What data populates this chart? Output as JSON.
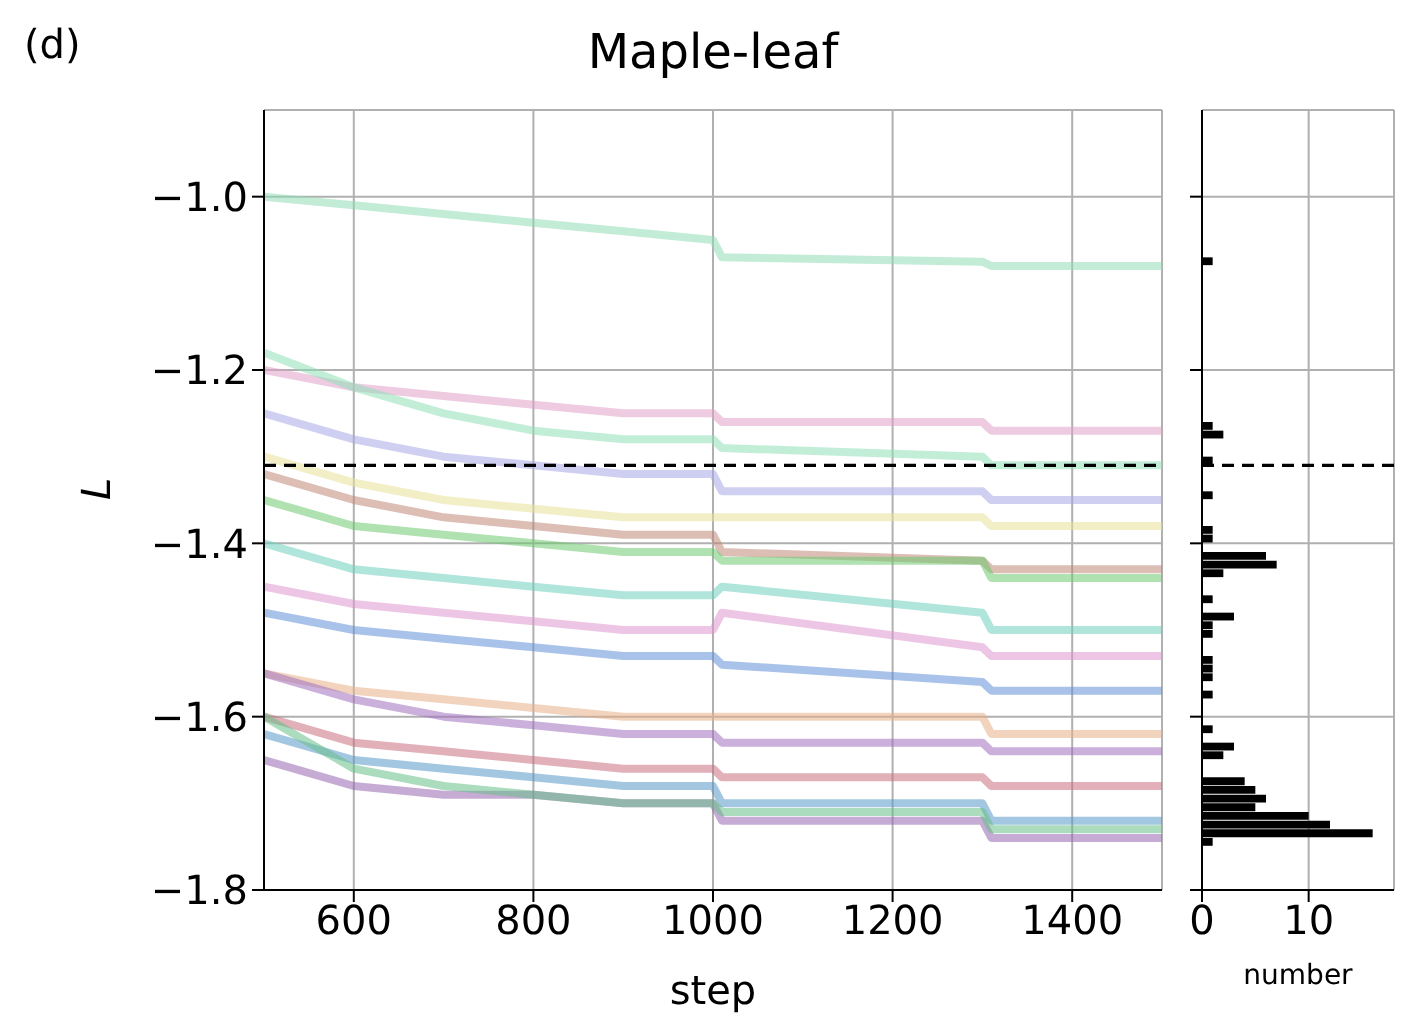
{
  "chart_data": [
    {
      "type": "line",
      "title": "Maple-leaf",
      "xlabel": "step",
      "ylabel": "L",
      "annotations": [
        "(d)"
      ],
      "x": [
        500,
        600,
        700,
        800,
        900,
        1000,
        1010,
        1300,
        1310,
        1500
      ],
      "series": [
        {
          "color": "#8fdcb4",
          "values": [
            -1.0,
            -1.01,
            -1.02,
            -1.03,
            -1.04,
            -1.05,
            -1.07,
            -1.075,
            -1.08,
            -1.08
          ]
        },
        {
          "color": "#e0a0c8",
          "values": [
            -1.2,
            -1.22,
            -1.23,
            -1.24,
            -1.25,
            -1.25,
            -1.26,
            -1.26,
            -1.27,
            -1.27
          ]
        },
        {
          "color": "#90e0b8",
          "values": [
            -1.18,
            -1.22,
            -1.25,
            -1.27,
            -1.28,
            -1.28,
            -1.29,
            -1.3,
            -1.31,
            -1.31
          ]
        },
        {
          "color": "#a8a8e8",
          "values": [
            -1.25,
            -1.28,
            -1.3,
            -1.31,
            -1.32,
            -1.32,
            -1.34,
            -1.34,
            -1.35,
            -1.35
          ]
        },
        {
          "color": "#e8e098",
          "values": [
            -1.3,
            -1.33,
            -1.35,
            -1.36,
            -1.37,
            -1.37,
            -1.37,
            -1.37,
            -1.38,
            -1.38
          ]
        },
        {
          "color": "#c08878",
          "values": [
            -1.32,
            -1.35,
            -1.37,
            -1.38,
            -1.39,
            -1.39,
            -1.41,
            -1.42,
            -1.43,
            -1.43
          ]
        },
        {
          "color": "#70c870",
          "values": [
            -1.35,
            -1.38,
            -1.39,
            -1.4,
            -1.41,
            -1.41,
            -1.42,
            -1.42,
            -1.44,
            -1.44
          ]
        },
        {
          "color": "#70d0c0",
          "values": [
            -1.4,
            -1.43,
            -1.44,
            -1.45,
            -1.46,
            -1.46,
            -1.45,
            -1.48,
            -1.5,
            -1.5
          ]
        },
        {
          "color": "#e098d0",
          "values": [
            -1.45,
            -1.47,
            -1.48,
            -1.49,
            -1.5,
            -1.5,
            -1.48,
            -1.52,
            -1.53,
            -1.53
          ]
        },
        {
          "color": "#6090d8",
          "values": [
            -1.48,
            -1.5,
            -1.51,
            -1.52,
            -1.53,
            -1.53,
            -1.54,
            -1.56,
            -1.57,
            -1.57
          ]
        },
        {
          "color": "#e8b088",
          "values": [
            -1.55,
            -1.57,
            -1.58,
            -1.59,
            -1.6,
            -1.6,
            -1.6,
            -1.6,
            -1.62,
            -1.62
          ]
        },
        {
          "color": "#a070c0",
          "values": [
            -1.55,
            -1.58,
            -1.6,
            -1.61,
            -1.62,
            -1.62,
            -1.63,
            -1.63,
            -1.64,
            -1.64
          ]
        },
        {
          "color": "#c87080",
          "values": [
            -1.6,
            -1.63,
            -1.64,
            -1.65,
            -1.66,
            -1.66,
            -1.67,
            -1.67,
            -1.68,
            -1.68
          ]
        },
        {
          "color": "#5898c8",
          "values": [
            -1.62,
            -1.65,
            -1.66,
            -1.67,
            -1.68,
            -1.68,
            -1.7,
            -1.7,
            -1.72,
            -1.72
          ]
        },
        {
          "color": "#9868b0",
          "values": [
            -1.65,
            -1.68,
            -1.69,
            -1.69,
            -1.7,
            -1.7,
            -1.72,
            -1.72,
            -1.74,
            -1.74
          ]
        },
        {
          "color": "#68c088",
          "values": [
            -1.6,
            -1.66,
            -1.68,
            -1.69,
            -1.7,
            -1.7,
            -1.71,
            -1.71,
            -1.73,
            -1.73
          ]
        }
      ],
      "xlim": [
        500,
        1500
      ],
      "xticks": [
        600,
        800,
        1000,
        1200,
        1400
      ],
      "ylim": [
        -1.8,
        -0.9
      ],
      "yticks": [
        {
          "value": -1.8,
          "label": "−1.8"
        },
        {
          "value": -1.6,
          "label": "−1.6"
        },
        {
          "value": -1.4,
          "label": "−1.4"
        },
        {
          "value": -1.2,
          "label": "−1.2"
        },
        {
          "value": -1.0,
          "label": "−1.0"
        }
      ],
      "ref_lines": [
        {
          "axis": "y",
          "value": -1.31,
          "color": "#000000",
          "line_style": "dashed"
        }
      ],
      "grid": true,
      "legend": false,
      "marker": "none",
      "line_style": "solid"
    },
    {
      "type": "histogram",
      "orientation": "horizontal",
      "xlabel": "number",
      "color": "#000000",
      "bins": [
        -1.75,
        -1.74,
        -1.73,
        -1.72,
        -1.71,
        -1.7,
        -1.69,
        -1.68,
        -1.67,
        -1.66,
        -1.65,
        -1.64,
        -1.63,
        -1.62,
        -1.61,
        -1.6,
        -1.59,
        -1.58,
        -1.57,
        -1.56,
        -1.55,
        -1.54,
        -1.53,
        -1.52,
        -1.51,
        -1.5,
        -1.49,
        -1.48,
        -1.47,
        -1.46,
        -1.45,
        -1.44,
        -1.43,
        -1.42,
        -1.41,
        -1.4,
        -1.39,
        -1.38,
        -1.37,
        -1.36,
        -1.35,
        -1.34,
        -1.33,
        -1.32,
        -1.31,
        -1.3,
        -1.29,
        -1.28,
        -1.27,
        -1.26,
        -1.25,
        -1.24,
        -1.23,
        -1.22,
        -1.21,
        -1.2,
        -1.19,
        -1.18,
        -1.17,
        -1.16,
        -1.15,
        -1.14,
        -1.13,
        -1.12,
        -1.11,
        -1.1,
        -1.09,
        -1.08,
        -1.07
      ],
      "values": [
        1,
        16,
        12,
        10,
        5,
        6,
        5,
        4,
        0,
        0,
        2,
        3,
        0,
        1,
        0,
        0,
        0,
        1,
        0,
        1,
        1,
        1,
        0,
        0,
        1,
        1,
        3,
        0,
        1,
        0,
        0,
        2,
        7,
        6,
        0,
        1,
        1,
        0,
        0,
        0,
        1,
        0,
        0,
        0,
        1,
        0,
        0,
        2,
        1,
        0,
        0,
        0,
        0,
        0,
        0,
        0,
        0,
        0,
        0,
        0,
        0,
        0,
        0,
        0,
        0,
        0,
        0,
        1
      ],
      "xlim": [
        0,
        18
      ],
      "xticks": [
        0,
        10
      ],
      "ylim": [
        -1.8,
        -0.9
      ],
      "yticks": [
        -1.8,
        -1.6,
        -1.4,
        -1.2,
        -1.0
      ],
      "tick_labels": "x",
      "ref_lines": [
        {
          "axis": "y",
          "value": -1.31,
          "color": "#000000",
          "line_style": "dashed"
        }
      ],
      "grid": true
    }
  ]
}
